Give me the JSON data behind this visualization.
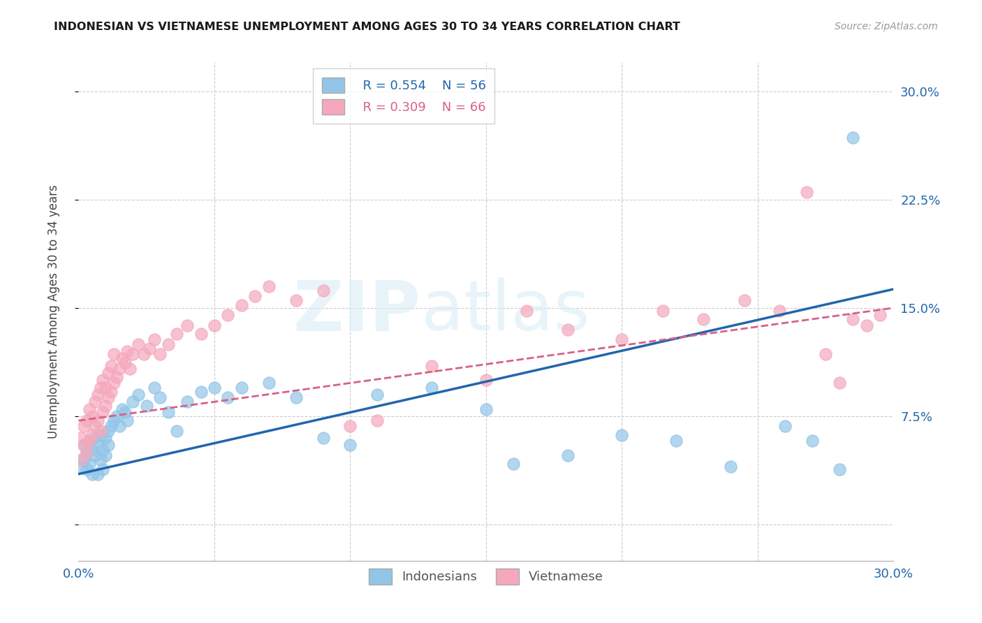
{
  "title": "INDONESIAN VS VIETNAMESE UNEMPLOYMENT AMONG AGES 30 TO 34 YEARS CORRELATION CHART",
  "source": "Source: ZipAtlas.com",
  "ylabel": "Unemployment Among Ages 30 to 34 years",
  "x_min": 0.0,
  "x_max": 0.3,
  "y_min": -0.025,
  "y_max": 0.32,
  "y_ticks": [
    0.0,
    0.075,
    0.15,
    0.225,
    0.3
  ],
  "y_tick_labels_right": [
    "",
    "7.5%",
    "15.0%",
    "22.5%",
    "30.0%"
  ],
  "x_ticks": [
    0.0,
    0.05,
    0.1,
    0.15,
    0.2,
    0.25,
    0.3
  ],
  "x_tick_labels": [
    "0.0%",
    "",
    "",
    "",
    "",
    "",
    "30.0%"
  ],
  "indonesian_color": "#92c5e8",
  "vietnamese_color": "#f5a8bc",
  "indonesian_line_color": "#2166ac",
  "vietnamese_line_color": "#d6618a",
  "legend_R1": "R = 0.554",
  "legend_N1": "N = 56",
  "legend_R2": "R = 0.309",
  "legend_N2": "N = 66",
  "indo_R": 0.554,
  "viet_R": 0.309,
  "indonesian_x": [
    0.001,
    0.002,
    0.002,
    0.003,
    0.003,
    0.004,
    0.004,
    0.005,
    0.005,
    0.006,
    0.006,
    0.007,
    0.007,
    0.008,
    0.008,
    0.009,
    0.009,
    0.01,
    0.01,
    0.011,
    0.011,
    0.012,
    0.013,
    0.014,
    0.015,
    0.016,
    0.017,
    0.018,
    0.02,
    0.022,
    0.025,
    0.028,
    0.03,
    0.033,
    0.036,
    0.04,
    0.045,
    0.05,
    0.055,
    0.06,
    0.07,
    0.08,
    0.09,
    0.1,
    0.11,
    0.13,
    0.15,
    0.16,
    0.18,
    0.2,
    0.22,
    0.24,
    0.26,
    0.27,
    0.28,
    0.285
  ],
  "indonesian_y": [
    0.04,
    0.045,
    0.055,
    0.038,
    0.05,
    0.042,
    0.058,
    0.035,
    0.052,
    0.048,
    0.06,
    0.035,
    0.055,
    0.045,
    0.062,
    0.038,
    0.052,
    0.06,
    0.048,
    0.065,
    0.055,
    0.068,
    0.072,
    0.075,
    0.068,
    0.08,
    0.078,
    0.072,
    0.085,
    0.09,
    0.082,
    0.095,
    0.088,
    0.078,
    0.065,
    0.085,
    0.092,
    0.095,
    0.088,
    0.095,
    0.098,
    0.088,
    0.06,
    0.055,
    0.09,
    0.095,
    0.08,
    0.042,
    0.048,
    0.062,
    0.058,
    0.04,
    0.068,
    0.058,
    0.038,
    0.268
  ],
  "vietnamese_x": [
    0.001,
    0.001,
    0.002,
    0.002,
    0.003,
    0.003,
    0.004,
    0.004,
    0.005,
    0.005,
    0.006,
    0.006,
    0.007,
    0.007,
    0.008,
    0.008,
    0.009,
    0.009,
    0.01,
    0.01,
    0.011,
    0.011,
    0.012,
    0.012,
    0.013,
    0.013,
    0.014,
    0.015,
    0.016,
    0.017,
    0.018,
    0.019,
    0.02,
    0.022,
    0.024,
    0.026,
    0.028,
    0.03,
    0.033,
    0.036,
    0.04,
    0.045,
    0.05,
    0.055,
    0.06,
    0.065,
    0.07,
    0.08,
    0.09,
    0.1,
    0.11,
    0.13,
    0.15,
    0.165,
    0.18,
    0.2,
    0.215,
    0.23,
    0.245,
    0.258,
    0.268,
    0.275,
    0.28,
    0.285,
    0.29,
    0.295
  ],
  "vietnamese_y": [
    0.045,
    0.06,
    0.055,
    0.068,
    0.05,
    0.072,
    0.058,
    0.08,
    0.062,
    0.075,
    0.068,
    0.085,
    0.072,
    0.09,
    0.065,
    0.095,
    0.078,
    0.1,
    0.082,
    0.095,
    0.088,
    0.105,
    0.092,
    0.11,
    0.098,
    0.118,
    0.102,
    0.108,
    0.115,
    0.112,
    0.12,
    0.108,
    0.118,
    0.125,
    0.118,
    0.122,
    0.128,
    0.118,
    0.125,
    0.132,
    0.138,
    0.132,
    0.138,
    0.145,
    0.152,
    0.158,
    0.165,
    0.155,
    0.162,
    0.068,
    0.072,
    0.11,
    0.1,
    0.148,
    0.135,
    0.128,
    0.148,
    0.142,
    0.155,
    0.148,
    0.23,
    0.118,
    0.098,
    0.142,
    0.138,
    0.145
  ]
}
